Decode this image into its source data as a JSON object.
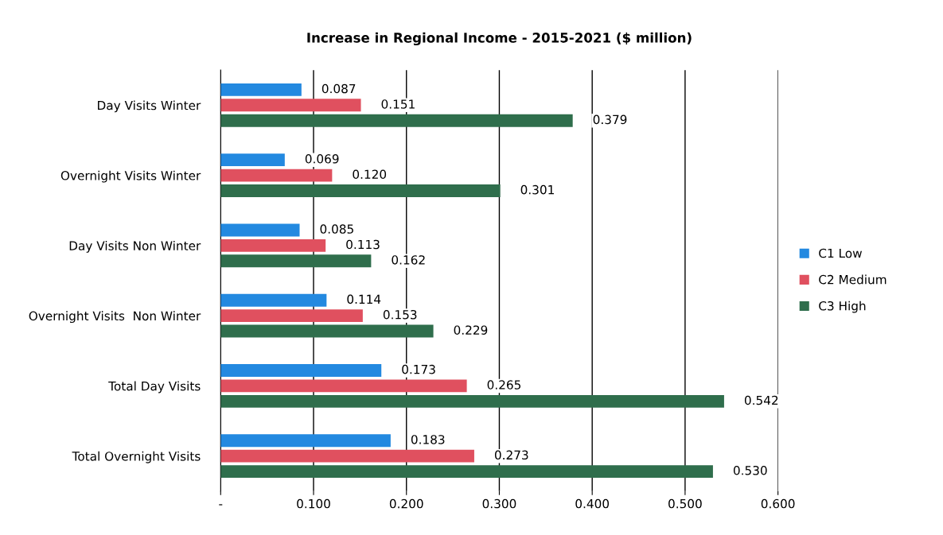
{
  "chart_data": {
    "type": "bar",
    "orientation": "horizontal",
    "title": "Increase in Regional Income - 2015-2021 ($ million)",
    "categories": [
      "Day Visits Winter",
      "Overnight Visits Winter",
      "Day Visits Non Winter",
      "Overnight Visits  Non Winter",
      "Total Day Visits",
      "Total Overnight Visits"
    ],
    "series": [
      {
        "name": "C1 Low",
        "color": "#2389e0",
        "values": [
          0.087,
          0.069,
          0.085,
          0.114,
          0.173,
          0.183
        ],
        "value_labels": [
          "0.087",
          "0.069",
          "0.085",
          "0.114",
          "0.173",
          "0.183"
        ]
      },
      {
        "name": "C2 Medium",
        "color": "#e0505f",
        "values": [
          0.151,
          0.12,
          0.113,
          0.153,
          0.265,
          0.273
        ],
        "value_labels": [
          "0.151",
          "0.120",
          "0.113",
          "0.153",
          "0.265",
          "0.273"
        ]
      },
      {
        "name": "C3 High",
        "color": "#2f6e4c",
        "values": [
          0.379,
          0.301,
          0.162,
          0.229,
          0.542,
          0.53
        ],
        "value_labels": [
          "0.379",
          "0.301",
          "0.162",
          "0.229",
          "0.542",
          "0.530"
        ]
      }
    ],
    "xlim": [
      0,
      0.6
    ],
    "xticks": [
      {
        "value": 0,
        "label": "-"
      },
      {
        "value": 0.1,
        "label": "0.100"
      },
      {
        "value": 0.2,
        "label": "0.200"
      },
      {
        "value": 0.3,
        "label": "0.300"
      },
      {
        "value": 0.4,
        "label": "0.400"
      },
      {
        "value": 0.5,
        "label": "0.500"
      },
      {
        "value": 0.6,
        "label": "0.600"
      }
    ],
    "grid": "x",
    "legend": "right"
  }
}
